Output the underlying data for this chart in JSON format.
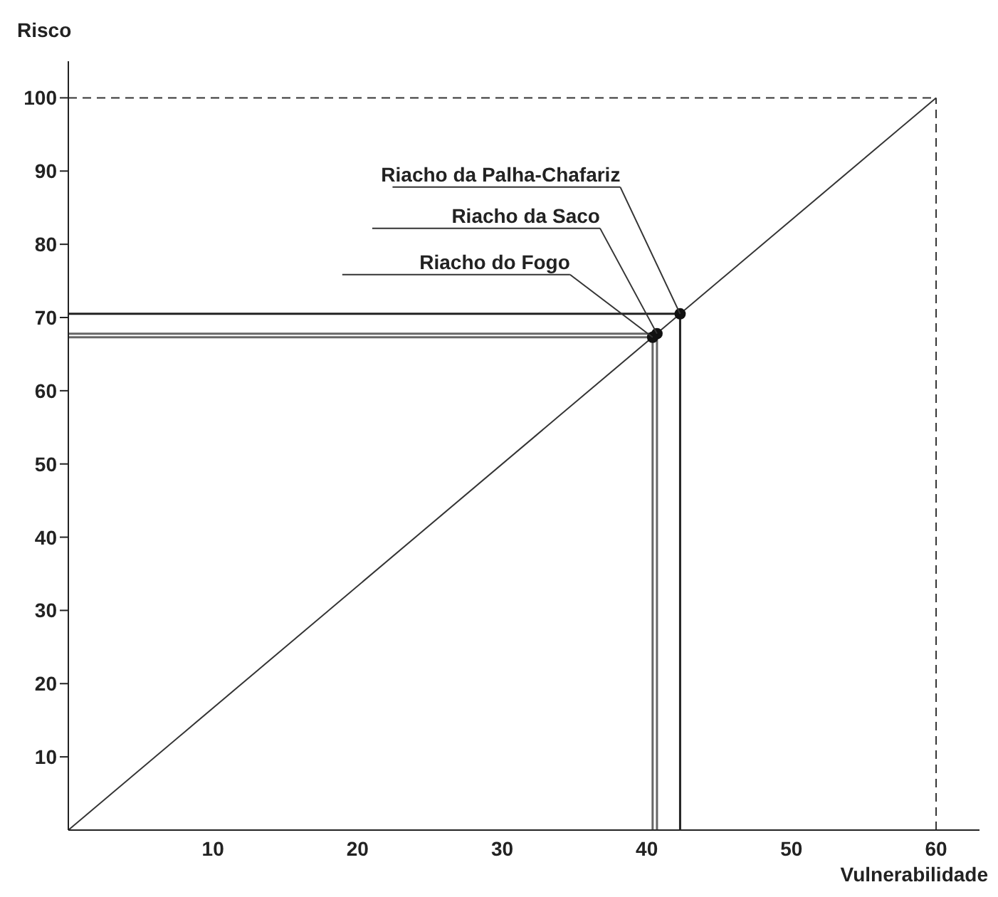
{
  "chart_data": {
    "type": "scatter",
    "xlabel": "Vulnerabilidade",
    "ylabel": "Risco",
    "xlim": [
      0,
      63
    ],
    "ylim": [
      0,
      105
    ],
    "xticks": [
      10,
      20,
      30,
      40,
      50,
      60
    ],
    "yticks": [
      10,
      20,
      30,
      40,
      50,
      60,
      70,
      80,
      90,
      100
    ],
    "marker": "circle",
    "series": [
      {
        "name": "Riacho da Palha-Chafariz",
        "color": "#111111",
        "x": [
          42.3
        ],
        "values": [
          70.5
        ]
      },
      {
        "name": "Riacho da Saco",
        "color": "#111111",
        "x": [
          40.7
        ],
        "values": [
          67.8
        ]
      },
      {
        "name": "Riacho do Fogo",
        "color": "#111111",
        "x": [
          40.4
        ],
        "values": [
          67.3
        ]
      },
      {
        "type": "line",
        "color": "#333333",
        "x": [
          0,
          60
        ],
        "values": [
          0,
          100
        ],
        "marker": "none",
        "line_style": "solid"
      }
    ],
    "ref_lines": [
      {
        "axis": "y",
        "value": 100,
        "color": "#333333",
        "line_style": "dashed"
      },
      {
        "axis": "x",
        "value": 60,
        "color": "#333333",
        "line_style": "dashed"
      },
      {
        "axis": "y",
        "value": 70.5,
        "color": "#222222",
        "line_style": "solid"
      },
      {
        "axis": "x",
        "value": 42.3,
        "color": "#222222",
        "line_style": "solid"
      },
      {
        "axis": "y",
        "value": 67.8,
        "color": "#666666",
        "line_style": "solid"
      },
      {
        "axis": "x",
        "value": 40.7,
        "color": "#666666",
        "line_style": "solid"
      },
      {
        "axis": "y",
        "value": 67.3,
        "color": "#666666",
        "line_style": "solid"
      },
      {
        "axis": "x",
        "value": 40.4,
        "color": "#666666",
        "line_style": "solid"
      }
    ]
  }
}
